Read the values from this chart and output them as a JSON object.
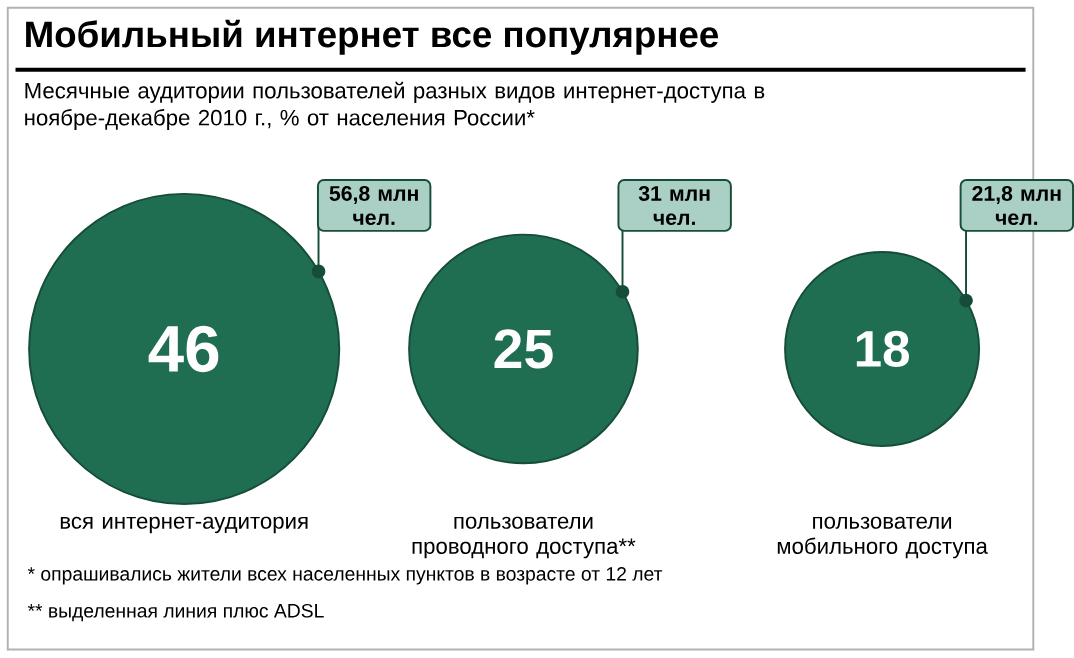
{
  "chart_data": {
    "type": "other",
    "title": "Мобильный интернет все популярнее",
    "subtitle": "Месячные аудитории пользователей разных видов интернет-доступа в ноябре-декабре 2010 г., % от населения России*",
    "categories": [
      "вся интернет-аудитория",
      "пользователи проводного доступа**",
      "пользователи мобильного доступа"
    ],
    "values": [
      46,
      25,
      18
    ],
    "color": "#1f6e52",
    "data_labels": true,
    "annotations": [
      {
        "text": "56,8 млн чел.",
        "x": "вся интернет-аудитория"
      },
      {
        "text": "31 млн чел.",
        "x": "пользователи проводного доступа**"
      },
      {
        "text": "21,8 млн чел.",
        "x": "пользователи мобильного доступа"
      },
      "* опрашивались жители всех населенных пунктов в возрасте от 12 лет",
      "** выделенная линия плюс ADSL"
    ]
  }
}
